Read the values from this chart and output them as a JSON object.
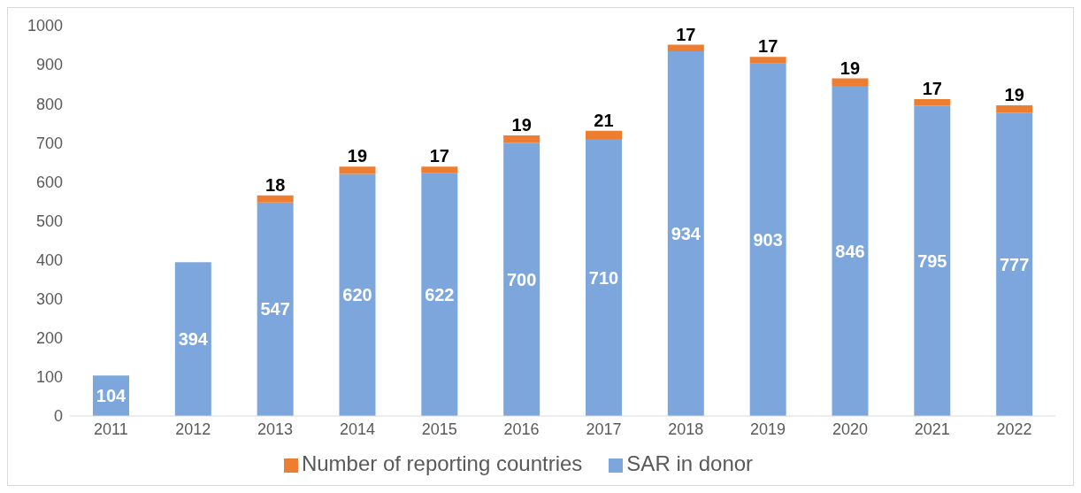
{
  "chart_data": {
    "type": "bar",
    "stacked": true,
    "categories": [
      "2011",
      "2012",
      "2013",
      "2014",
      "2015",
      "2016",
      "2017",
      "2018",
      "2019",
      "2020",
      "2021",
      "2022"
    ],
    "series": [
      {
        "name": "SAR in donor",
        "color": "#7da7dc",
        "values": [
          104,
          394,
          547,
          620,
          622,
          700,
          710,
          934,
          903,
          846,
          795,
          777
        ]
      },
      {
        "name": "Number of reporting countries",
        "color": "#ed7d31",
        "values": [
          null,
          null,
          18,
          19,
          17,
          19,
          21,
          17,
          17,
          19,
          17,
          19
        ]
      }
    ],
    "ylim": [
      0,
      1000
    ],
    "yticks": [
      0,
      100,
      200,
      300,
      400,
      500,
      600,
      700,
      800,
      900,
      1000
    ],
    "grid": false,
    "legend": "bottom",
    "data_labels": true
  }
}
